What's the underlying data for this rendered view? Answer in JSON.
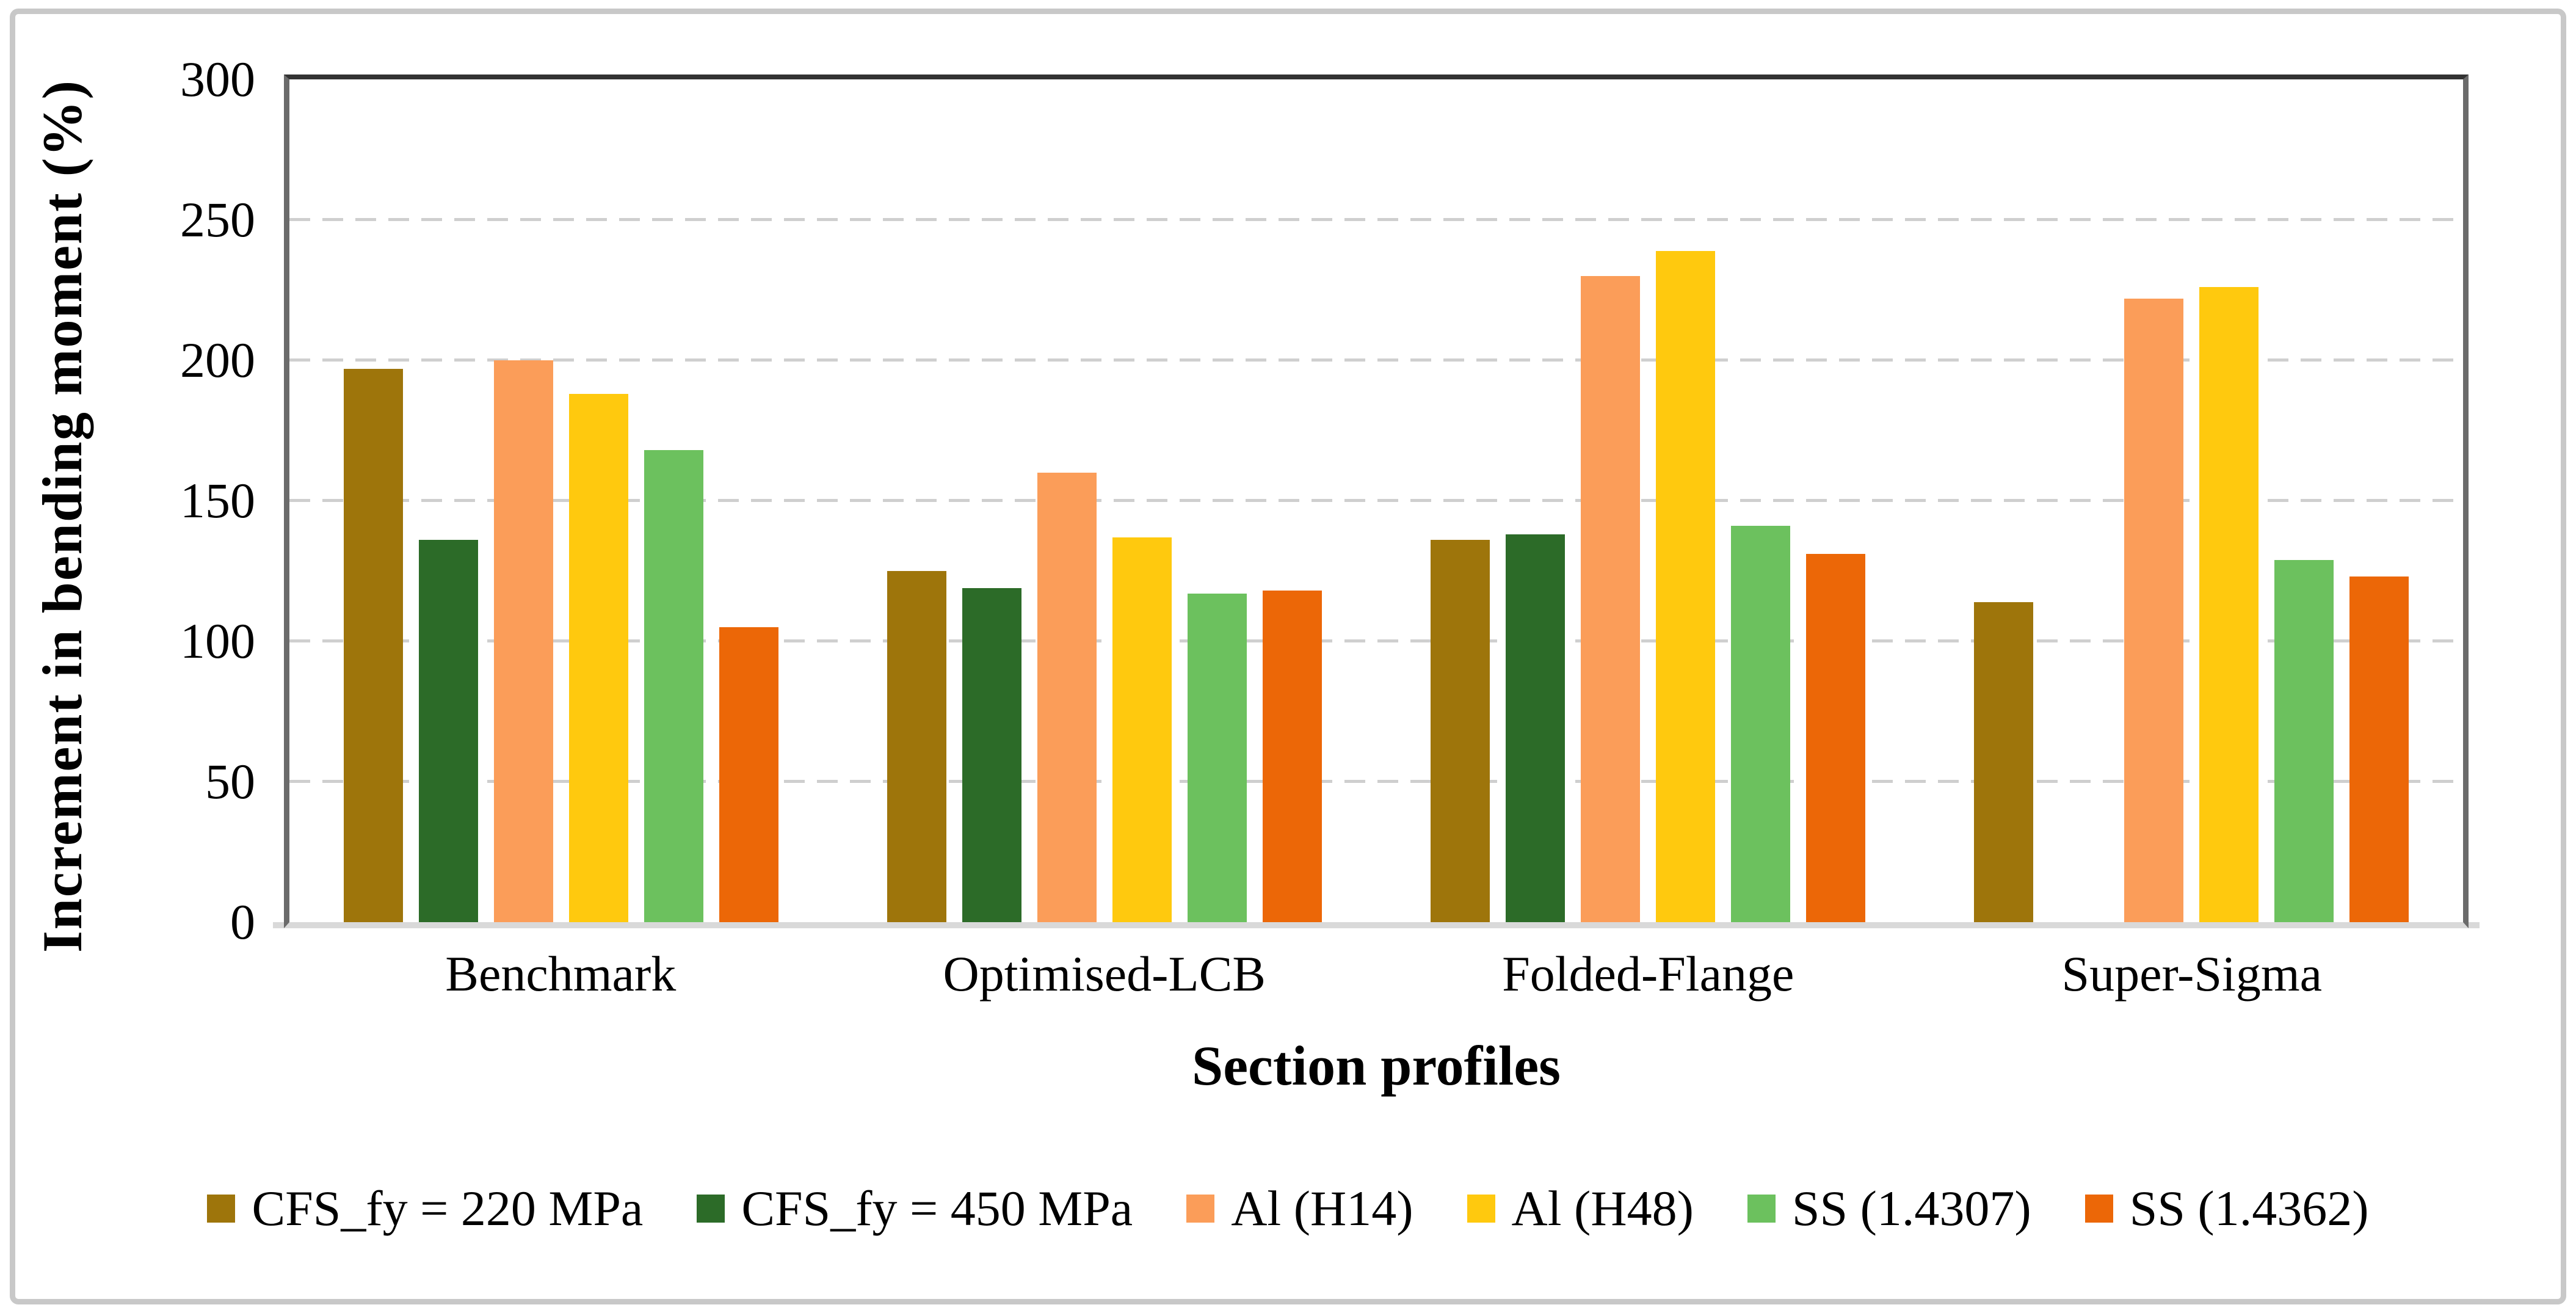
{
  "figure": {
    "kind": "scientific bar chart figure",
    "background": "#ffffff"
  },
  "style": {
    "text_color": "#000000",
    "card_border": "#c8c8c8",
    "grid_color": "#cfcfcf",
    "axis_line_color": "#6b6b6b",
    "plot_top_border": "#333333",
    "baseline_color": "#d9d9d9"
  },
  "chart_data": {
    "type": "bar",
    "title": "",
    "xlabel": "Section profiles",
    "ylabel": "Increment in bending moment (%)",
    "ylim": [
      0,
      300
    ],
    "yticks": [
      0,
      50,
      100,
      150,
      200,
      250,
      300
    ],
    "grid": "horizontal dashed gridlines at 50..250, solid frame around plot",
    "legend_position": "bottom",
    "categories": [
      "Benchmark",
      "Optimised-LCB",
      "Folded-Flange",
      "Super-Sigma"
    ],
    "series": [
      {
        "name": "CFS_fy = 220 MPa",
        "color": "#9E750B",
        "values": [
          197,
          125,
          136,
          114
        ]
      },
      {
        "name": "CFS_fy = 450 MPa",
        "color": "#2C6B28",
        "values": [
          136,
          119,
          138,
          null
        ]
      },
      {
        "name": "Al (H14)",
        "color": "#FB9D59",
        "values": [
          200,
          160,
          230,
          222
        ]
      },
      {
        "name": "Al (H48)",
        "color": "#FFC90E",
        "values": [
          188,
          137,
          239,
          226
        ]
      },
      {
        "name": "SS (1.4307)",
        "color": "#6CC15E",
        "values": [
          168,
          117,
          141,
          129
        ]
      },
      {
        "name": "SS (1.4362)",
        "color": "#EC6707",
        "values": [
          105,
          118,
          131,
          123
        ]
      }
    ]
  }
}
